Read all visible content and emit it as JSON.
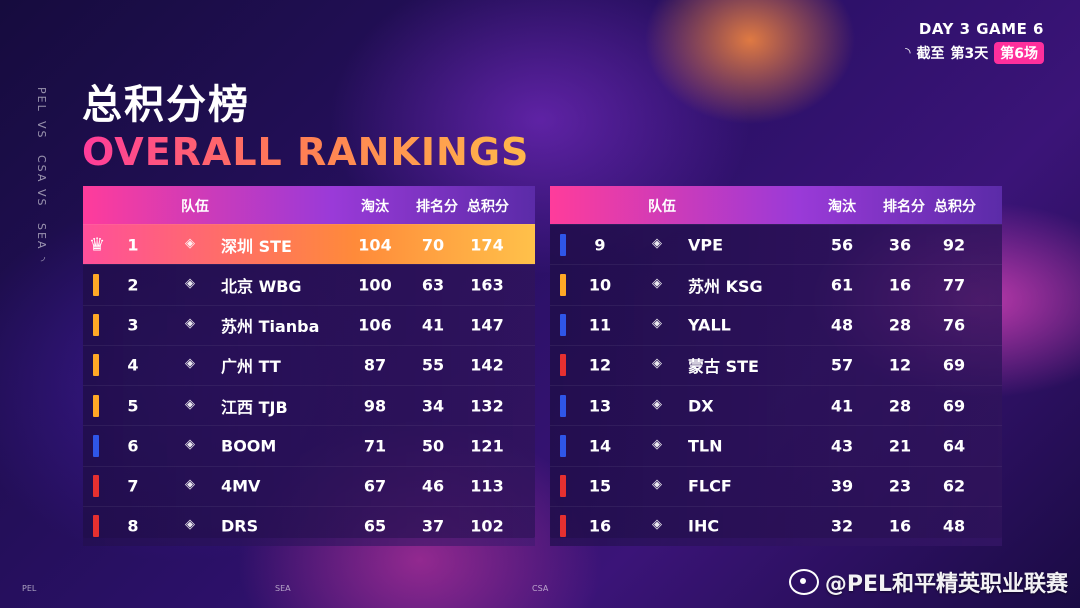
{
  "side_labels": [
    "PEL",
    "VS",
    "CSA",
    "VS",
    "SEA",
    "◝"
  ],
  "title_cn": "总积分榜",
  "title_en": "OVERALL RANKINGS",
  "badge": {
    "day_game": "DAY 3 GAME 6",
    "prefix": "截至",
    "day": "第3天",
    "game": "第6场"
  },
  "columns": {
    "team": "队伍",
    "elim": "淘汰",
    "place": "排名分",
    "total": "总积分"
  },
  "colors": {
    "gold": "#ffa726",
    "blue": "#2f56e8",
    "red": "#e63030",
    "accent": "#ff2f9c"
  },
  "left_rows": [
    {
      "rank": "1",
      "team": "深圳 STE",
      "elim": "104",
      "place": "70",
      "total": "174",
      "marker": "crown"
    },
    {
      "rank": "2",
      "team": "北京 WBG",
      "elim": "100",
      "place": "63",
      "total": "163",
      "marker": "gold"
    },
    {
      "rank": "3",
      "team": "苏州 Tianba",
      "elim": "106",
      "place": "41",
      "total": "147",
      "marker": "gold"
    },
    {
      "rank": "4",
      "team": "广州 TT",
      "elim": "87",
      "place": "55",
      "total": "142",
      "marker": "gold"
    },
    {
      "rank": "5",
      "team": "江西 TJB",
      "elim": "98",
      "place": "34",
      "total": "132",
      "marker": "gold"
    },
    {
      "rank": "6",
      "team": "BOOM",
      "elim": "71",
      "place": "50",
      "total": "121",
      "marker": "blue"
    },
    {
      "rank": "7",
      "team": "4MV",
      "elim": "67",
      "place": "46",
      "total": "113",
      "marker": "red"
    },
    {
      "rank": "8",
      "team": "DRS",
      "elim": "65",
      "place": "37",
      "total": "102",
      "marker": "red"
    }
  ],
  "right_rows": [
    {
      "rank": "9",
      "team": "VPE",
      "elim": "56",
      "place": "36",
      "total": "92",
      "marker": "blue"
    },
    {
      "rank": "10",
      "team": "苏州 KSG",
      "elim": "61",
      "place": "16",
      "total": "77",
      "marker": "gold"
    },
    {
      "rank": "11",
      "team": "YALL",
      "elim": "48",
      "place": "28",
      "total": "76",
      "marker": "blue"
    },
    {
      "rank": "12",
      "team": "蒙古 STE",
      "elim": "57",
      "place": "12",
      "total": "69",
      "marker": "red"
    },
    {
      "rank": "13",
      "team": "DX",
      "elim": "41",
      "place": "28",
      "total": "69",
      "marker": "blue"
    },
    {
      "rank": "14",
      "team": "TLN",
      "elim": "43",
      "place": "21",
      "total": "64",
      "marker": "blue"
    },
    {
      "rank": "15",
      "team": "FLCF",
      "elim": "39",
      "place": "23",
      "total": "62",
      "marker": "red"
    },
    {
      "rank": "16",
      "team": "IHC",
      "elim": "32",
      "place": "16",
      "total": "48",
      "marker": "red"
    }
  ],
  "footer": [
    "PEL",
    "SEA",
    "CSA"
  ],
  "watermark": "@PEL和平精英职业联赛"
}
